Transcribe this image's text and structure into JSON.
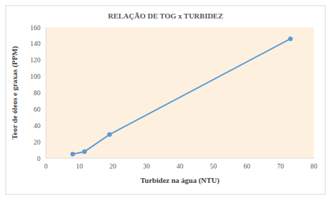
{
  "chart_data": {
    "type": "line",
    "title": "RELAÇÃO DE TOG x TURBIDEZ",
    "x_label": "Turbidez na água (NTU)",
    "y_label": "Teor de óleos e graxas (PPM)",
    "x": [
      8,
      11.5,
      19,
      73
    ],
    "values": [
      5,
      8,
      29,
      146
    ],
    "color": "#5b9bd5",
    "marker": "circle",
    "line_style": "solid",
    "xlim": [
      0,
      80
    ],
    "xticks": [
      0,
      10,
      20,
      30,
      40,
      50,
      60,
      70,
      80
    ],
    "ylim": [
      0,
      160
    ],
    "yticks": [
      0,
      20,
      40,
      60,
      80,
      100,
      120,
      140,
      160
    ],
    "grid": false
  }
}
